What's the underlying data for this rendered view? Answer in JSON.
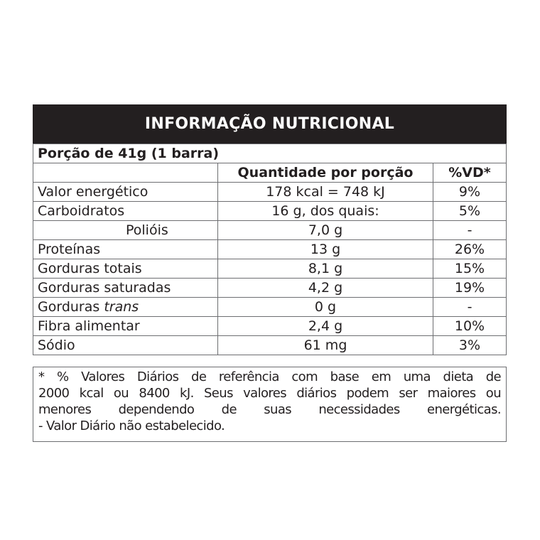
{
  "title": "INFORMAÇÃO NUTRICIONAL",
  "serving": "Porção de 41g (1 barra)",
  "columns": {
    "quantity": "Quantidade por porção",
    "dv": "%VD*"
  },
  "rows": [
    {
      "name": "Valor energético",
      "quantity": "178 kcal = 748 kJ",
      "dv": "9%"
    },
    {
      "name": "Carboidratos",
      "quantity": "16 g, dos quais:",
      "dv": "5%"
    },
    {
      "name": "Polióis",
      "quantity": "7,0 g",
      "dv": "-"
    },
    {
      "name": "Proteínas",
      "quantity": "13 g",
      "dv": "26%"
    },
    {
      "name": "Gorduras totais",
      "quantity": "8,1 g",
      "dv": "15%"
    },
    {
      "name": "Gorduras saturadas",
      "quantity": "4,2 g",
      "dv": "19%"
    },
    {
      "name": "Gorduras",
      "name_italic": "trans",
      "quantity": "0 g",
      "dv": "-"
    },
    {
      "name": "Fibra alimentar",
      "quantity": "2,4 g",
      "dv": "10%"
    },
    {
      "name": "Sódio",
      "quantity": "61 mg",
      "dv": "3%"
    }
  ],
  "footnote": [
    "* % Valores Diários de referência com base em uma dieta de",
    "2000 kcal ou 8400 kJ. Seus valores diários podem ser maiores ou",
    "menores dependendo de suas necessidades energéticas.",
    "- Valor Diário não estabelecido."
  ]
}
